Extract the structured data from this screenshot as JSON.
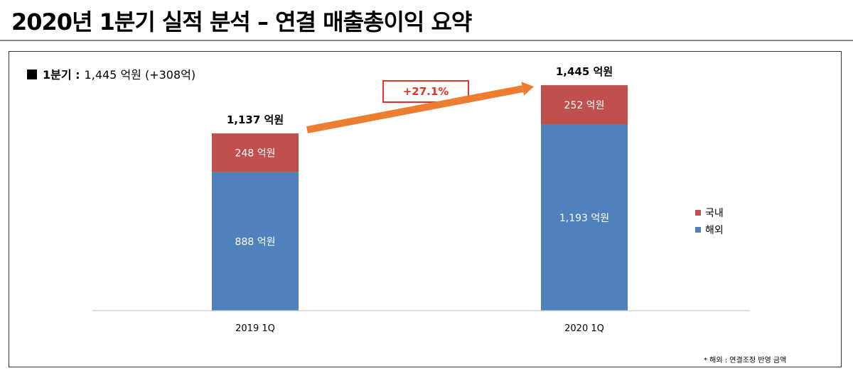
{
  "title": "2020년 1분기 실적 분석 – 연결 매출총이익 요약",
  "summary": {
    "label": "1분기 :",
    "value": "1,445 억원 (+308억)"
  },
  "growth_badge": "+27.1%",
  "legend": [
    {
      "label": "국내",
      "color": "#c0504d"
    },
    {
      "label": "해외",
      "color": "#4f81bd"
    }
  ],
  "footnote": "* 해외 : 연결조정 반영 금액",
  "chart_data": {
    "type": "bar",
    "stacked": true,
    "categories": [
      "2019 1Q",
      "2020 1Q"
    ],
    "series": [
      {
        "name": "해외",
        "values": [
          888,
          1193
        ],
        "labels": [
          "888 억원",
          "1,193 억원"
        ],
        "color": "#4f81bd"
      },
      {
        "name": "국내",
        "values": [
          248,
          252
        ],
        "labels": [
          "248 억원",
          "252 억원"
        ],
        "color": "#c0504d"
      }
    ],
    "totals": [
      1137,
      1445
    ],
    "total_labels": [
      "1,137 억원",
      "1,445 억원"
    ],
    "ylim": [
      0,
      1600
    ],
    "annotation": {
      "type": "arrow",
      "from": "2019 1Q",
      "to": "2020 1Q",
      "color": "#ed7d31"
    }
  }
}
